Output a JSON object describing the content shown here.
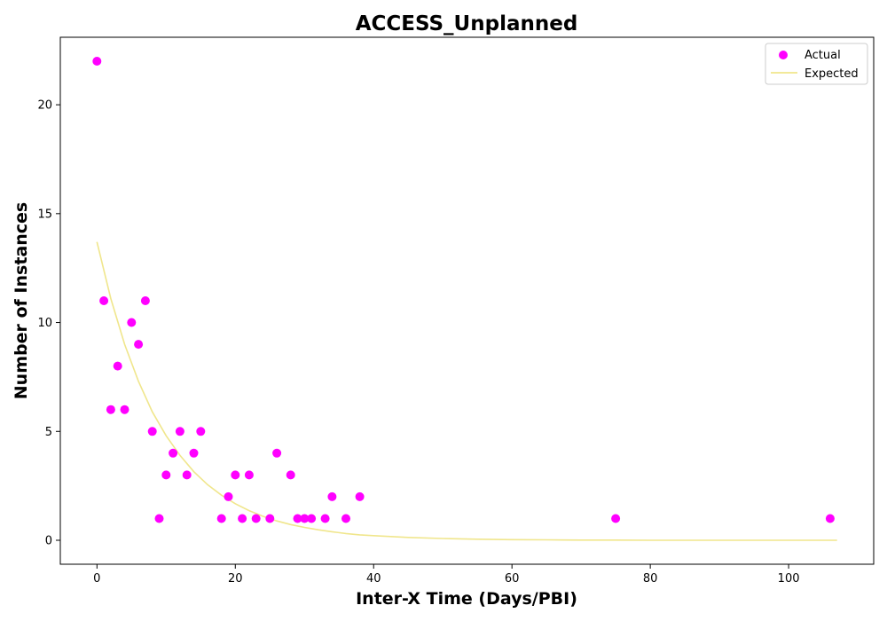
{
  "chart_data": {
    "type": "scatter",
    "title": "ACCESS_Unplanned",
    "xlabel": "Inter-X Time (Days/PBI)",
    "ylabel": "Number of Instances",
    "xlim": [
      -5.3,
      112.3
    ],
    "ylim": [
      -1.1,
      23.1
    ],
    "xticks": [
      0,
      20,
      40,
      60,
      80,
      100
    ],
    "yticks": [
      0,
      5,
      10,
      15,
      20
    ],
    "grid": false,
    "legend": "top-right",
    "series": [
      {
        "name": "Actual",
        "kind": "scatter",
        "color": "#ff00ff",
        "points": [
          [
            0,
            22
          ],
          [
            1,
            11
          ],
          [
            2,
            6
          ],
          [
            3,
            8
          ],
          [
            4,
            6
          ],
          [
            5,
            10
          ],
          [
            6,
            9
          ],
          [
            7,
            11
          ],
          [
            8,
            5
          ],
          [
            9,
            1
          ],
          [
            10,
            3
          ],
          [
            11,
            4
          ],
          [
            12,
            5
          ],
          [
            13,
            3
          ],
          [
            14,
            4
          ],
          [
            15,
            5
          ],
          [
            18,
            1
          ],
          [
            19,
            2
          ],
          [
            20,
            3
          ],
          [
            21,
            1
          ],
          [
            22,
            3
          ],
          [
            23,
            1
          ],
          [
            25,
            1
          ],
          [
            26,
            4
          ],
          [
            28,
            3
          ],
          [
            29,
            1
          ],
          [
            30,
            1
          ],
          [
            31,
            1
          ],
          [
            33,
            1
          ],
          [
            34,
            2
          ],
          [
            36,
            1
          ],
          [
            38,
            2
          ],
          [
            75,
            1
          ],
          [
            106,
            1
          ]
        ]
      },
      {
        "name": "Expected",
        "kind": "line",
        "color": "#f0e68c",
        "x": [
          0,
          2,
          4,
          6,
          8,
          10,
          12,
          14,
          16,
          18,
          20,
          22,
          24,
          26,
          28,
          30,
          32,
          34,
          36,
          38,
          40,
          45,
          50,
          55,
          60,
          65,
          70,
          75,
          80,
          85,
          90,
          95,
          100,
          107
        ],
        "y": [
          13.7,
          11.1,
          9.0,
          7.3,
          5.9,
          4.8,
          3.9,
          3.15,
          2.55,
          2.07,
          1.68,
          1.36,
          1.1,
          0.89,
          0.72,
          0.59,
          0.48,
          0.39,
          0.31,
          0.25,
          0.21,
          0.13,
          0.08,
          0.05,
          0.03,
          0.02,
          0.01,
          0.01,
          0.0,
          0.0,
          0.0,
          0.0,
          0.0,
          0.0
        ]
      }
    ]
  }
}
